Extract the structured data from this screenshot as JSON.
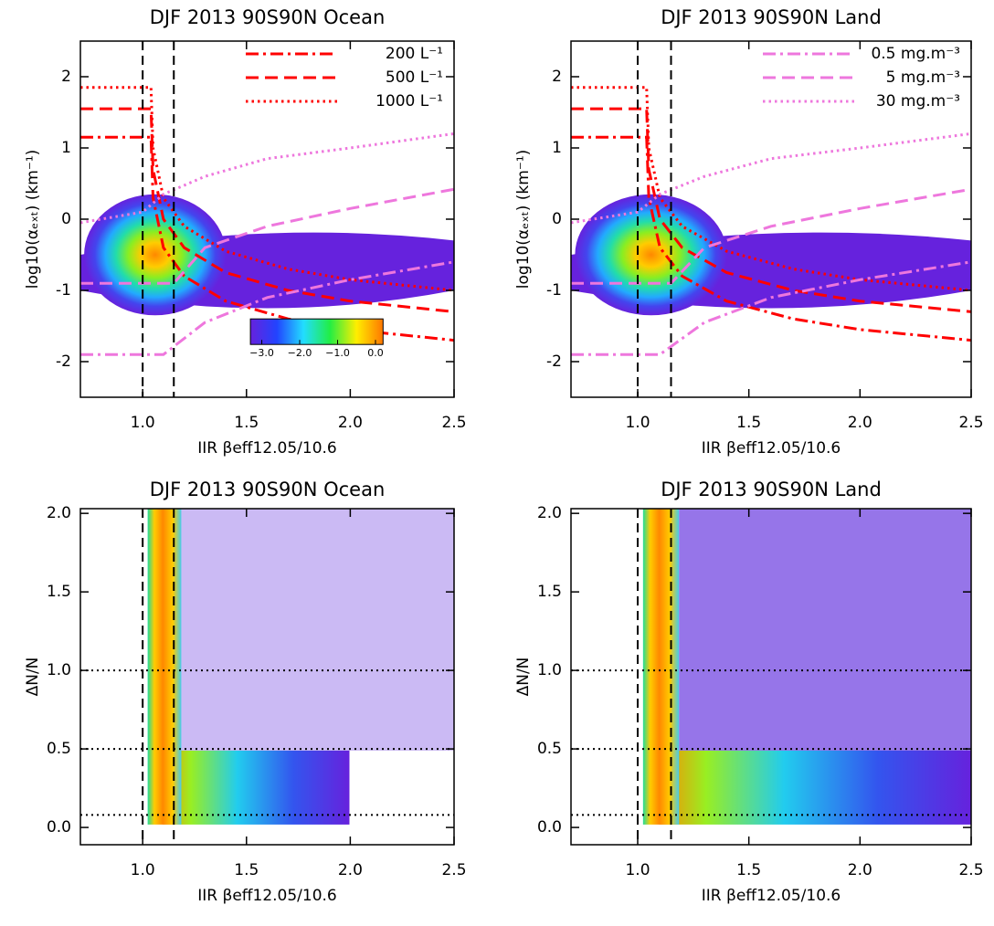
{
  "chart_data": [
    {
      "type": "heatmap",
      "title": "DJF 2013 90S90N Ocean",
      "xlabel": "IIR βeff12.05/10.6",
      "ylabel": "log10(αₑₓₜ) (km⁻¹)",
      "xlim": [
        0.7,
        2.5
      ],
      "xticks": [
        {
          "value": 1.0,
          "label": "1.0"
        },
        1.5,
        {
          "value": 2.0,
          "label": "2.0"
        },
        2.5
      ],
      "ylim": [
        -2.5,
        2.5
      ],
      "yticks": [
        -2,
        -1,
        0,
        1,
        2
      ],
      "vlines": [
        1.0,
        1.15
      ],
      "legend": "top right",
      "series": [
        {
          "name": "200 L⁻¹",
          "color": "#ff0000",
          "dash": "dashdot",
          "x": [
            0.7,
            1.04,
            1.05,
            1.1,
            1.2,
            1.4,
            1.7,
            2.0,
            2.5
          ],
          "values": [
            1.15,
            1.15,
            0.3,
            -0.4,
            -0.8,
            -1.15,
            -1.4,
            -1.55,
            -1.7
          ]
        },
        {
          "name": "500 L⁻¹",
          "color": "#ff0000",
          "dash": "dashed",
          "x": [
            0.7,
            1.04,
            1.05,
            1.1,
            1.2,
            1.4,
            1.7,
            2.0,
            2.5
          ],
          "values": [
            1.55,
            1.55,
            0.7,
            0,
            -0.4,
            -0.75,
            -1.0,
            -1.15,
            -1.3
          ]
        },
        {
          "name": "1000 L⁻¹",
          "color": "#ff0000",
          "dash": "dotted",
          "x": [
            0.7,
            1.04,
            1.05,
            1.1,
            1.2,
            1.4,
            1.7,
            2.0,
            2.5
          ],
          "values": [
            1.85,
            1.85,
            1.0,
            0.3,
            -0.1,
            -0.45,
            -0.7,
            -0.85,
            -1.0
          ]
        },
        {
          "color": "#ee77dd",
          "dash": "dashdot",
          "x": [
            0.7,
            1.1,
            1.3,
            1.6,
            2.0,
            2.5
          ],
          "values": [
            -1.9,
            -1.9,
            -1.45,
            -1.1,
            -0.85,
            -0.6
          ]
        },
        {
          "color": "#ee77dd",
          "dash": "dashed",
          "x": [
            0.7,
            1.15,
            1.3,
            1.6,
            2.0,
            2.5
          ],
          "values": [
            -0.9,
            -0.9,
            -0.4,
            -0.1,
            0.15,
            0.42
          ]
        },
        {
          "color": "#ee77dd",
          "dash": "dotted",
          "x": [
            0.7,
            1.0,
            1.1,
            1.3,
            1.6,
            2.0,
            2.5
          ],
          "values": [
            -0.05,
            0.1,
            0.35,
            0.6,
            0.85,
            1.0,
            1.2
          ]
        }
      ],
      "colorbar": {
        "lim": [
          -3.3,
          0.2
        ],
        "ticks": [
          {
            "value": -3,
            "label": "−3.0"
          },
          {
            "value": -2,
            "label": "−2.0"
          },
          {
            "value": -1,
            "label": "−1.0"
          },
          {
            "value": 0,
            "label": "0.0"
          }
        ]
      }
    },
    {
      "type": "heatmap",
      "title": "DJF 2013 90S90N Land",
      "xlabel": "IIR βeff12.05/10.6",
      "ylabel": "log10(αₑₓₜ) (km⁻¹)",
      "xlim": [
        0.7,
        2.5
      ],
      "xticks": [
        {
          "value": 1.0,
          "label": "1.0"
        },
        1.5,
        {
          "value": 2.0,
          "label": "2.0"
        },
        2.5
      ],
      "ylim": [
        -2.5,
        2.5
      ],
      "yticks": [
        -2,
        -1,
        0,
        1,
        2
      ],
      "vlines": [
        1.0,
        1.15
      ],
      "legend": "top right",
      "series": [
        {
          "color": "#ff0000",
          "dash": "dashdot",
          "x": [
            0.7,
            1.04,
            1.05,
            1.1,
            1.2,
            1.4,
            1.7,
            2.0,
            2.5
          ],
          "values": [
            1.15,
            1.15,
            0.3,
            -0.4,
            -0.8,
            -1.15,
            -1.4,
            -1.55,
            -1.7
          ]
        },
        {
          "color": "#ff0000",
          "dash": "dashed",
          "x": [
            0.7,
            1.04,
            1.05,
            1.1,
            1.2,
            1.4,
            1.7,
            2.0,
            2.5
          ],
          "values": [
            1.55,
            1.55,
            0.7,
            0,
            -0.4,
            -0.75,
            -1.0,
            -1.15,
            -1.3
          ]
        },
        {
          "color": "#ff0000",
          "dash": "dotted",
          "x": [
            0.7,
            1.04,
            1.05,
            1.1,
            1.2,
            1.4,
            1.7,
            2.0,
            2.5
          ],
          "values": [
            1.85,
            1.85,
            1.0,
            0.3,
            -0.1,
            -0.45,
            -0.7,
            -0.85,
            -1.0
          ]
        },
        {
          "name": "0.5 mg.m⁻³",
          "color": "#ee77dd",
          "dash": "dashdot",
          "x": [
            0.7,
            1.1,
            1.3,
            1.6,
            2.0,
            2.5
          ],
          "values": [
            -1.9,
            -1.9,
            -1.45,
            -1.1,
            -0.85,
            -0.6
          ]
        },
        {
          "name": "5 mg.m⁻³",
          "color": "#ee77dd",
          "dash": "dashed",
          "x": [
            0.7,
            1.15,
            1.3,
            1.6,
            2.0,
            2.5
          ],
          "values": [
            -0.9,
            -0.9,
            -0.4,
            -0.1,
            0.15,
            0.42
          ]
        },
        {
          "name": "30 mg.m⁻³",
          "color": "#ee77dd",
          "dash": "dotted",
          "x": [
            0.7,
            1.0,
            1.1,
            1.3,
            1.6,
            2.0,
            2.5
          ],
          "values": [
            -0.05,
            0.1,
            0.35,
            0.6,
            0.85,
            1.0,
            1.2
          ]
        }
      ]
    },
    {
      "type": "heatmap",
      "title": "DJF 2013 90S90N Ocean",
      "xlabel": "IIR βeff12.05/10.6",
      "ylabel": "ΔN/N",
      "xlim": [
        0.7,
        2.5
      ],
      "xticks": [
        {
          "value": 1.0,
          "label": "1.0"
        },
        1.5,
        {
          "value": 2.0,
          "label": "2.0"
        },
        2.5
      ],
      "ylim": [
        -0.11,
        2.03
      ],
      "yticks": [
        {
          "value": 0,
          "label": "0.0"
        },
        0.5,
        {
          "value": 1,
          "label": "1.0"
        },
        1.5,
        {
          "value": 2,
          "label": "2.0"
        }
      ],
      "vlines": [
        1.0,
        1.15
      ],
      "hlines": [
        0.08,
        0.5,
        1.0
      ]
    },
    {
      "type": "heatmap",
      "title": "DJF 2013 90S90N Land",
      "xlabel": "IIR βeff12.05/10.6",
      "ylabel": "ΔN/N",
      "xlim": [
        0.7,
        2.5
      ],
      "xticks": [
        {
          "value": 1.0,
          "label": "1.0"
        },
        1.5,
        {
          "value": 2.0,
          "label": "2.0"
        },
        2.5
      ],
      "ylim": [
        -0.11,
        2.03
      ],
      "yticks": [
        {
          "value": 0,
          "label": "0.0"
        },
        0.5,
        {
          "value": 1,
          "label": "1.0"
        },
        1.5,
        {
          "value": 2,
          "label": "2.0"
        }
      ],
      "vlines": [
        1.0,
        1.15
      ],
      "hlines": [
        0.08,
        0.5,
        1.0
      ]
    }
  ]
}
